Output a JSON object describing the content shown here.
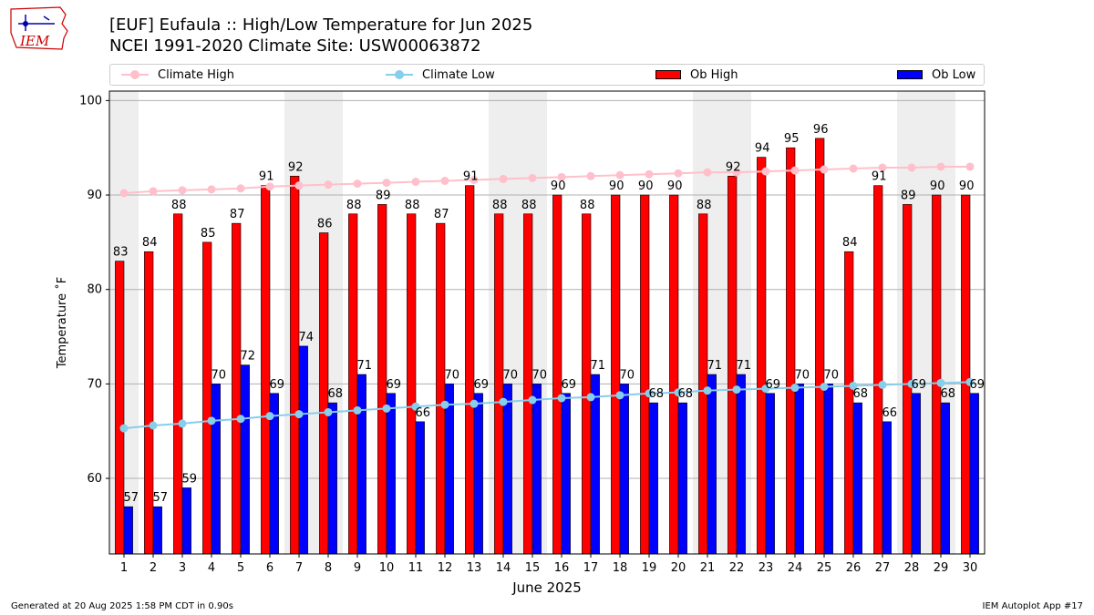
{
  "header": {
    "title_line1": "[EUF] Eufaula :: High/Low Temperature for Jun 2025",
    "title_line2": "NCEI 1991-2020 Climate Site: USW00063872"
  },
  "logo": {
    "text": "IEM",
    "icon": "iem-logo-icon"
  },
  "legend": {
    "climate_high": "Climate High",
    "climate_low": "Climate Low",
    "ob_high": "Ob High",
    "ob_low": "Ob Low"
  },
  "colors": {
    "ob_high": "#ff0000",
    "ob_low": "#0000ff",
    "climate_high": "#ffc0cb",
    "climate_low": "#87ceeb",
    "week_shade": "#eeeeee",
    "grid": "#b0b0b0"
  },
  "footer": {
    "left": "Generated at 20 Aug 2025 1:58 PM CDT in 0.90s",
    "right": "IEM Autoplot App #17"
  },
  "chart_data": {
    "type": "bar",
    "xlabel": "June 2025",
    "ylabel": "Temperature ˚F",
    "ylim": [
      52,
      101
    ],
    "yticks": [
      60,
      70,
      80,
      90,
      100
    ],
    "grid": true,
    "legend_position": "top",
    "categories": [
      "1",
      "2",
      "3",
      "4",
      "5",
      "6",
      "7",
      "8",
      "9",
      "10",
      "11",
      "12",
      "13",
      "14",
      "15",
      "16",
      "17",
      "18",
      "19",
      "20",
      "21",
      "22",
      "23",
      "24",
      "25",
      "26",
      "27",
      "28",
      "29",
      "30"
    ],
    "shaded_days": [
      1,
      7,
      8,
      14,
      15,
      21,
      22,
      28,
      29
    ],
    "series": [
      {
        "name": "Ob High",
        "kind": "bar",
        "values": [
          83,
          84,
          88,
          85,
          87,
          91,
          92,
          86,
          88,
          89,
          88,
          87,
          91,
          88,
          88,
          90,
          88,
          90,
          90,
          90,
          88,
          92,
          94,
          95,
          96,
          84,
          91,
          89,
          90,
          90
        ]
      },
      {
        "name": "Ob Low",
        "kind": "bar",
        "values": [
          57,
          57,
          59,
          70,
          72,
          69,
          74,
          68,
          71,
          69,
          66,
          70,
          69,
          70,
          70,
          69,
          71,
          70,
          68,
          68,
          71,
          71,
          69,
          70,
          70,
          68,
          66,
          69,
          68,
          69
        ]
      },
      {
        "name": "Climate High",
        "kind": "line",
        "values": [
          90.2,
          90.4,
          90.5,
          90.6,
          90.7,
          90.9,
          91.0,
          91.1,
          91.2,
          91.3,
          91.4,
          91.5,
          91.6,
          91.7,
          91.8,
          91.9,
          92.0,
          92.1,
          92.2,
          92.3,
          92.4,
          92.4,
          92.5,
          92.6,
          92.7,
          92.8,
          92.9,
          92.9,
          93.0,
          93.0
        ]
      },
      {
        "name": "Climate Low",
        "kind": "line",
        "values": [
          65.3,
          65.6,
          65.8,
          66.1,
          66.3,
          66.6,
          66.8,
          67.0,
          67.2,
          67.4,
          67.6,
          67.8,
          67.9,
          68.1,
          68.3,
          68.5,
          68.6,
          68.8,
          69.0,
          69.1,
          69.3,
          69.4,
          69.5,
          69.6,
          69.7,
          69.8,
          69.9,
          70.0,
          70.1,
          70.2
        ]
      }
    ]
  }
}
